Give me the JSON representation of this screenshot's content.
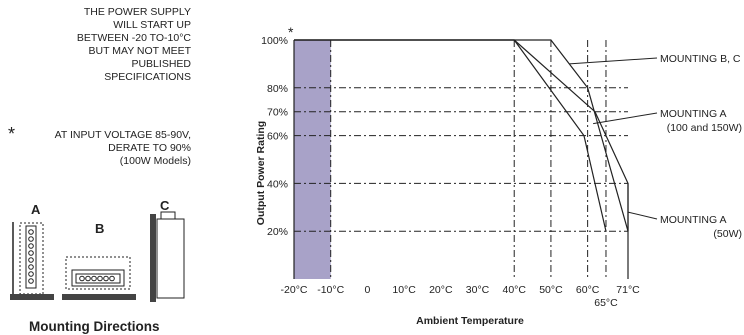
{
  "legend": {
    "swatch_color": "#a8a2c8",
    "swatch_note_lines": [
      "THE POWER SUPPLY",
      "WILL START UP",
      "BETWEEN -20 TO-10°C",
      "BUT MAY NOT MEET",
      "PUBLISHED",
      "SPECIFICATIONS"
    ],
    "asterisk": "*",
    "derate_note_lines": [
      "AT INPUT VOLTAGE 85-90V,",
      "DERATE TO 90%",
      "(100W Models)"
    ]
  },
  "mounting": {
    "title": "Mounting Directions",
    "labels": [
      "A",
      "B",
      "C"
    ]
  },
  "chart_data": {
    "type": "line",
    "xlabel": "Ambient Temperature",
    "ylabel": "Output Power Rating",
    "xlim": [
      -20,
      71
    ],
    "ylim": [
      0,
      100
    ],
    "x_ticks": [
      {
        "value": -20,
        "label": "-20°C"
      },
      {
        "value": -10,
        "label": "-10°C"
      },
      {
        "value": 0,
        "label": "0"
      },
      {
        "value": 10,
        "label": "10°C"
      },
      {
        "value": 20,
        "label": "20°C"
      },
      {
        "value": 30,
        "label": "30°C"
      },
      {
        "value": 40,
        "label": "40°C"
      },
      {
        "value": 50,
        "label": "50°C"
      },
      {
        "value": 60,
        "label": "60°C"
      },
      {
        "value": 65,
        "label": "65°C"
      },
      {
        "value": 71,
        "label": "71°C"
      }
    ],
    "y_ticks": [
      {
        "value": 100,
        "label": "100%"
      },
      {
        "value": 80,
        "label": "80%"
      },
      {
        "value": 70,
        "label": "70%"
      },
      {
        "value": 60,
        "label": "60%"
      },
      {
        "value": 40,
        "label": "40%"
      },
      {
        "value": 20,
        "label": "20%"
      }
    ],
    "y_top_marker": "*",
    "shaded_region": {
      "x": [
        -20,
        -10
      ],
      "color": "#a8a2c8"
    },
    "series": [
      {
        "name": "MOUNTING B, C",
        "points": [
          [
            -20,
            100
          ],
          [
            50,
            100
          ],
          [
            60,
            80
          ],
          [
            71,
            20
          ]
        ]
      },
      {
        "name": "MOUNTING A\n(100 and 150W)",
        "points": [
          [
            -20,
            100
          ],
          [
            40,
            100
          ],
          [
            59,
            60
          ],
          [
            65,
            20
          ]
        ]
      },
      {
        "name": "MOUNTING A\n(50W)",
        "points": [
          [
            -20,
            100
          ],
          [
            40,
            100
          ],
          [
            62,
            70
          ],
          [
            71,
            40
          ],
          [
            71,
            20
          ]
        ]
      }
    ]
  }
}
